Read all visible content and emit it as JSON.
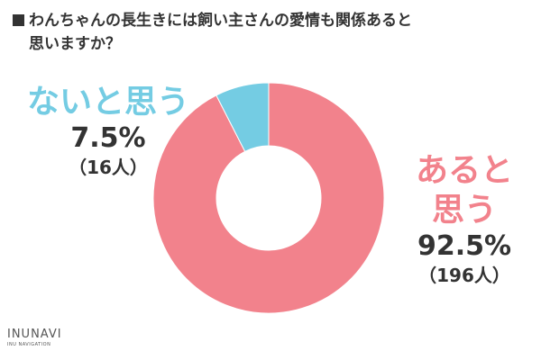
{
  "title": {
    "line1": "わんちゃんの長生きには飼い主さんの愛情も関係あると",
    "line2": "思いますか？"
  },
  "chart_data": {
    "type": "pie",
    "donut": true,
    "slices": [
      {
        "label": "あると思う",
        "percent": 92.5,
        "percent_text": "92.5%",
        "count_text": "（196人）",
        "color": "#f2828c"
      },
      {
        "label": "ないと思う",
        "percent": 7.5,
        "percent_text": "7.5%",
        "count_text": "（16人）",
        "color": "#74cce3"
      }
    ]
  },
  "labels": {
    "yes_line1": "あると",
    "yes_line2": "思う",
    "no_line1": "ないと思う"
  },
  "logo": {
    "main": "INUNAVI",
    "sub": "INU NAVIGATION"
  }
}
